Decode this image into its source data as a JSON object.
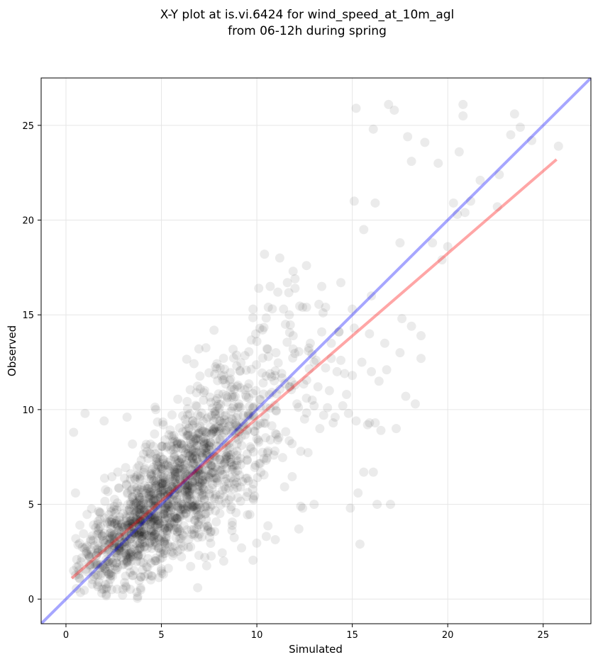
{
  "chart_data": {
    "type": "scatter",
    "title_line1": "X-Y plot at is.vi.6424 for wind_speed_at_10m_agl",
    "title_line2": "from 06-12h during spring",
    "xlabel": "Simulated",
    "ylabel": "Observed",
    "xlim": [
      -1.3,
      27.5
    ],
    "ylim": [
      -1.3,
      27.5
    ],
    "xticks": [
      0,
      5,
      10,
      15,
      20,
      25
    ],
    "yticks": [
      0,
      5,
      10,
      15,
      20,
      25
    ],
    "grid": true,
    "colors": {
      "points": "#000000",
      "one_to_one_line": "#0000ff",
      "regression_line": "#ff0000",
      "grid": "#e6e6e6"
    },
    "one_to_one_line": {
      "x": [
        -1.3,
        27.5
      ],
      "y": [
        -1.3,
        27.5
      ]
    },
    "regression_line": {
      "x": [
        0.3,
        25.7
      ],
      "y": [
        1.1,
        23.2
      ]
    },
    "points_sparse": {
      "x": [
        0.4,
        0.5,
        1.0,
        0.4,
        2.0,
        3.2,
        2.4,
        6.9,
        9.2,
        12.2,
        12.4,
        12.3,
        12.5,
        13.0,
        13.3,
        13.5,
        14.0,
        13.8,
        14.5,
        14.8,
        13.6,
        14.2,
        13.1,
        12.7,
        11.8,
        12.0,
        12.8,
        13.4,
        13.9,
        14.4,
        15.0,
        15.5,
        16.0,
        15.2,
        16.2,
        16.5,
        15.8,
        14.7,
        13.2,
        12.9,
        12.1,
        12.6,
        13.7,
        14.1,
        15.3,
        16.1,
        15.6,
        14.9,
        13.0,
        12.3,
        15.4,
        16.3,
        17.0,
        17.3,
        17.8,
        18.3,
        18.6,
        18.1,
        17.5,
        17.6,
        16.8,
        16.4,
        15.9,
        15.1,
        14.6,
        14.3,
        13.6,
        12.4,
        11.6,
        11.1,
        10.7,
        10.3,
        10.6,
        11.4,
        12.0,
        11.9,
        12.6,
        10.4,
        11.2,
        9.8,
        10.1,
        10.0,
        10.6,
        11.0,
        11.5,
        11.7,
        11.9,
        12.0,
        12.6,
        13.4,
        14.4,
        15.0,
        16.0,
        16.7,
        17.5,
        18.6,
        19.2,
        19.7,
        20.0,
        20.3,
        20.5,
        20.9,
        21.2,
        21.7,
        22.7,
        22.6,
        23.3,
        23.5,
        23.8,
        24.4,
        25.8,
        20.8,
        20.8,
        20.6,
        19.5,
        18.8,
        16.1,
        15.2,
        17.2,
        16.9,
        17.9,
        18.1,
        16.2,
        15.1,
        15.6,
        15.9,
        13.0,
        13.9,
        14.3,
        11.9
      ],
      "y": [
        8.8,
        5.6,
        9.8,
        1.5,
        9.4,
        9.6,
        0.5,
        0.6,
        2.7,
        3.7,
        4.8,
        7.8,
        9.5,
        10.2,
        9.0,
        9.7,
        9.3,
        11.0,
        10.2,
        9.8,
        12.2,
        12.0,
        12.6,
        13.1,
        11.5,
        11.3,
        13.5,
        14.1,
        13.5,
        12.6,
        11.8,
        12.5,
        12.0,
        9.4,
        9.3,
        8.9,
        9.2,
        10.8,
        11.2,
        10.5,
        10.3,
        10.6,
        10.1,
        9.6,
        5.6,
        6.7,
        6.7,
        4.8,
        5.0,
        4.9,
        2.9,
        5.0,
        5.0,
        9.0,
        10.7,
        10.3,
        12.7,
        14.4,
        13.0,
        14.8,
        12.1,
        11.5,
        14.0,
        14.3,
        11.9,
        14.1,
        15.4,
        15.4,
        16.7,
        16.2,
        16.5,
        14.2,
        15.4,
        15.3,
        16.4,
        17.3,
        17.6,
        18.2,
        18.0,
        15.3,
        16.4,
        13.6,
        12.8,
        13.0,
        14.5,
        15.0,
        13.9,
        16.9,
        15.4,
        16.5,
        16.7,
        15.3,
        16.0,
        13.5,
        18.8,
        13.9,
        18.8,
        17.9,
        18.6,
        20.9,
        20.3,
        20.4,
        21.0,
        22.1,
        22.4,
        20.7,
        24.5,
        25.6,
        24.9,
        24.2,
        23.9,
        25.5,
        26.1,
        23.6,
        23.0,
        24.1,
        24.8,
        25.9,
        25.8,
        26.1,
        24.4,
        23.1,
        20.9,
        21.0,
        19.5,
        9.3,
        12.5,
        12.7,
        14.1,
        13.2
      ]
    },
    "dense_cluster": {
      "count": 1600,
      "x_range": [
        0.5,
        13.5
      ],
      "y_range": [
        0.0,
        16.5
      ]
    }
  }
}
